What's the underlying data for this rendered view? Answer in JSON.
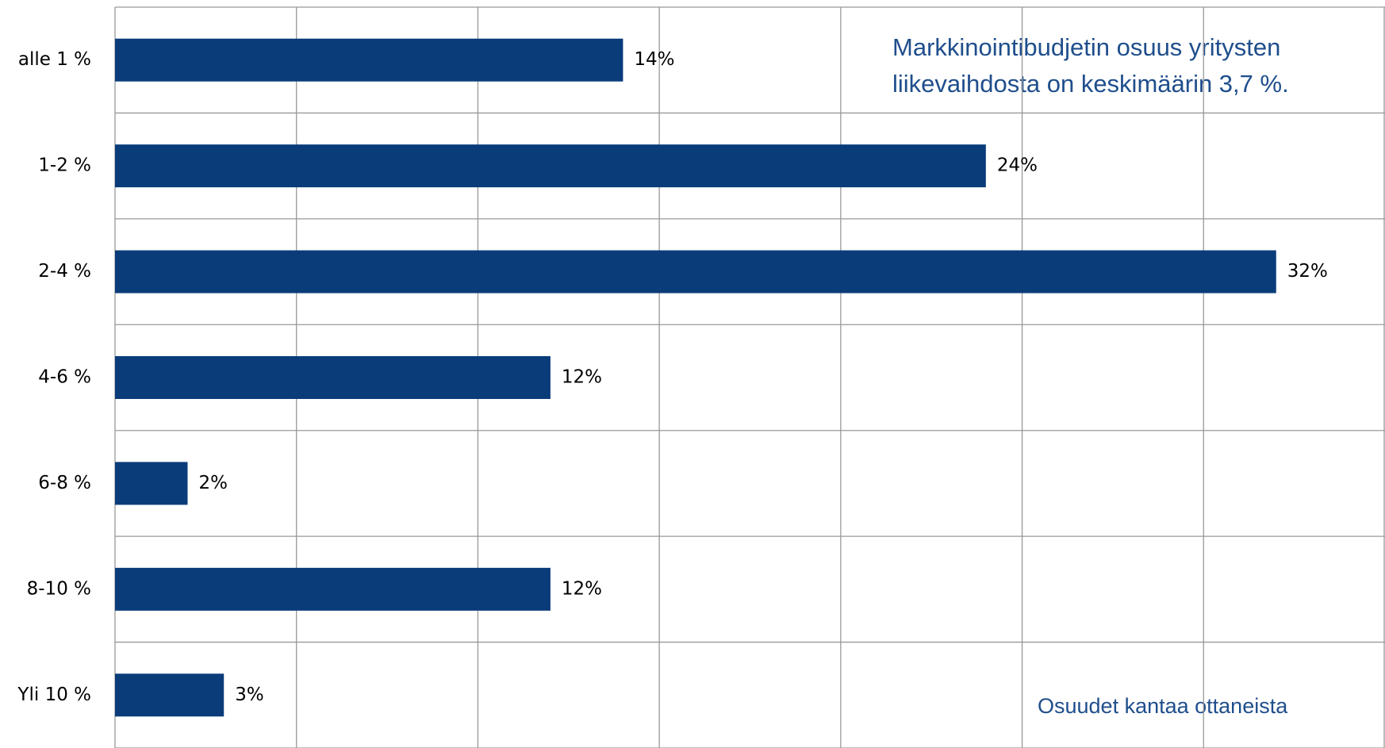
{
  "chart_data": {
    "type": "hbar",
    "categories": [
      "alle 1 %",
      "1-2 %",
      "2-4 %",
      "4-6 %",
      "6-8 %",
      "8-10 %",
      "Yli 10 %"
    ],
    "values": [
      14,
      24,
      32,
      12,
      2,
      12,
      3
    ],
    "value_labels": [
      "14%",
      "24%",
      "32%",
      "12%",
      "2%",
      "12%",
      "3%"
    ],
    "color": "#0a3c7a",
    "xlim": [
      0,
      35
    ],
    "xticks": [
      0,
      5,
      10,
      15,
      20,
      25,
      30,
      35
    ],
    "grid": true,
    "annotations": [
      "Markkinointibudjetin osuus yritysten",
      "liikevaihdosta on keskimäärin 3,7 %."
    ],
    "note": "Osuudet kantaa ottaneista"
  }
}
